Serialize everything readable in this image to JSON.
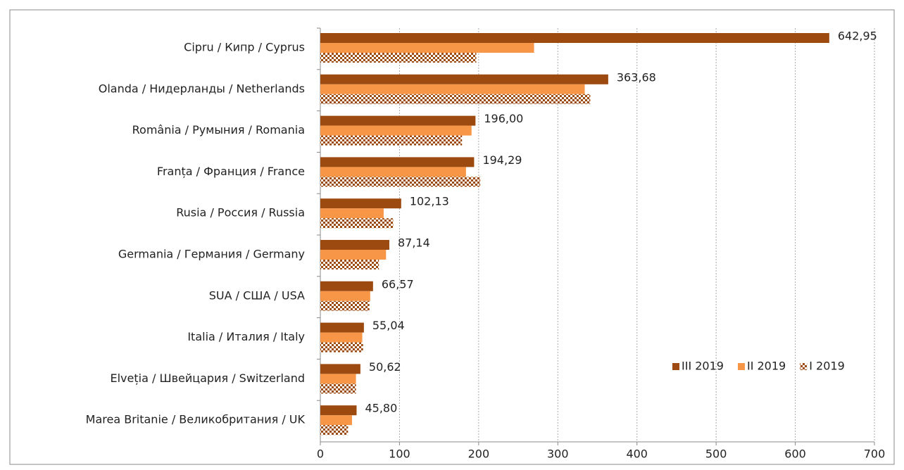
{
  "chart_data": {
    "type": "hbar",
    "categories": [
      "Cipru / Кипр / Cyprus",
      "Olanda / Нидерланды / Netherlands",
      "România / Румыния / Romania",
      "Franța / Франция / France",
      "Rusia / Россия / Russia",
      "Germania / Германия / Germany",
      "SUA / США / USA",
      "Italia / Италия / Italy",
      "Elveția / Швейцария / Switzerland",
      "Marea Britanie / Великобритания / UK"
    ],
    "series": [
      {
        "name": "III 2019",
        "color": "#9c4a10",
        "values": [
          642.95,
          363.68,
          196.0,
          194.29,
          102.13,
          87.14,
          66.57,
          55.04,
          50.62,
          45.8
        ],
        "value_labels": [
          "642,95",
          "363,68",
          "196,00",
          "194,29",
          "102,13",
          "87,14",
          "66,57",
          "55,04",
          "50,62",
          "45,80"
        ]
      },
      {
        "name": "II 2019",
        "color": "#f79646",
        "values": [
          270,
          334,
          191,
          184,
          80,
          83,
          63,
          53,
          45,
          40
        ]
      },
      {
        "name": "I 2019",
        "color": "#9c4a10",
        "pattern": "checkered",
        "values": [
          197,
          341,
          179,
          202,
          92,
          74,
          62,
          54,
          45,
          35
        ]
      }
    ],
    "xlim": [
      0,
      700
    ],
    "xticks": [
      0,
      100,
      200,
      300,
      400,
      500,
      600,
      700
    ],
    "grid": true,
    "legend": "lower right"
  }
}
